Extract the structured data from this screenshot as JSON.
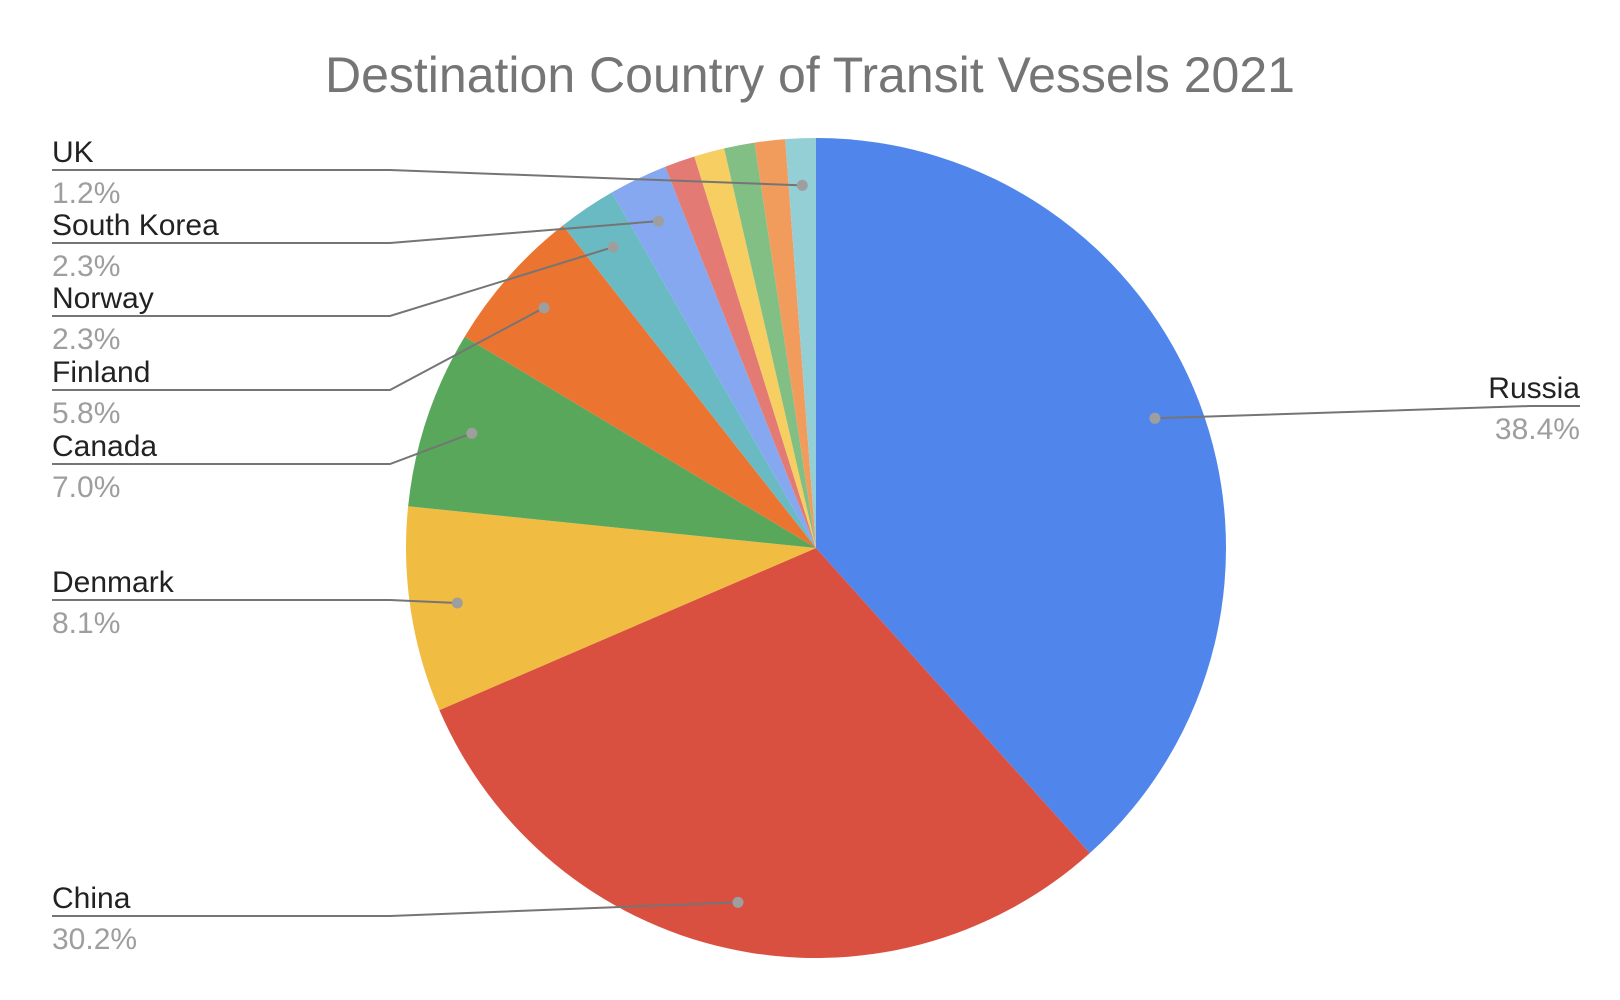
{
  "chart_data": {
    "type": "pie",
    "title": "Destination Country of Transit Vessels 2021",
    "start": "12 o'clock",
    "direction": "clockwise",
    "slices": [
      {
        "name": "Russia",
        "value": 38.4,
        "color": "#5086ec",
        "label": "38.4%",
        "labeled": true
      },
      {
        "name": "China",
        "value": 30.2,
        "color": "#d95040",
        "label": "30.2%",
        "labeled": true
      },
      {
        "name": "Denmark",
        "value": 8.1,
        "color": "#f1bc42",
        "label": "8.1%",
        "labeled": true
      },
      {
        "name": "Canada",
        "value": 7.0,
        "color": "#58a75b",
        "label": "7.0%",
        "labeled": true
      },
      {
        "name": "Finland",
        "value": 5.8,
        "color": "#ec7431",
        "label": "5.8%",
        "labeled": true
      },
      {
        "name": "Norway",
        "value": 2.3,
        "color": "#6abac4",
        "label": "2.3%",
        "labeled": true
      },
      {
        "name": "South Korea",
        "value": 2.3,
        "color": "#86a8f0",
        "label": "2.3%",
        "labeled": true
      },
      {
        "name": "",
        "value": 1.2,
        "color": "#e37b74",
        "labeled": false
      },
      {
        "name": "",
        "value": 1.2,
        "color": "#f6ce62",
        "labeled": false
      },
      {
        "name": "",
        "value": 1.2,
        "color": "#82bf85",
        "labeled": false
      },
      {
        "name": "",
        "value": 1.2,
        "color": "#f19c5c",
        "labeled": false
      },
      {
        "name": "UK",
        "value": 1.2,
        "color": "#94cfd6",
        "label": "1.2%",
        "labeled": true
      }
    ],
    "label_placement": {
      "Russia": "right",
      "China": "left",
      "Denmark": "left",
      "Canada": "left",
      "Finland": "left",
      "Norway": "left",
      "South Korea": "left",
      "UK": "left"
    }
  }
}
